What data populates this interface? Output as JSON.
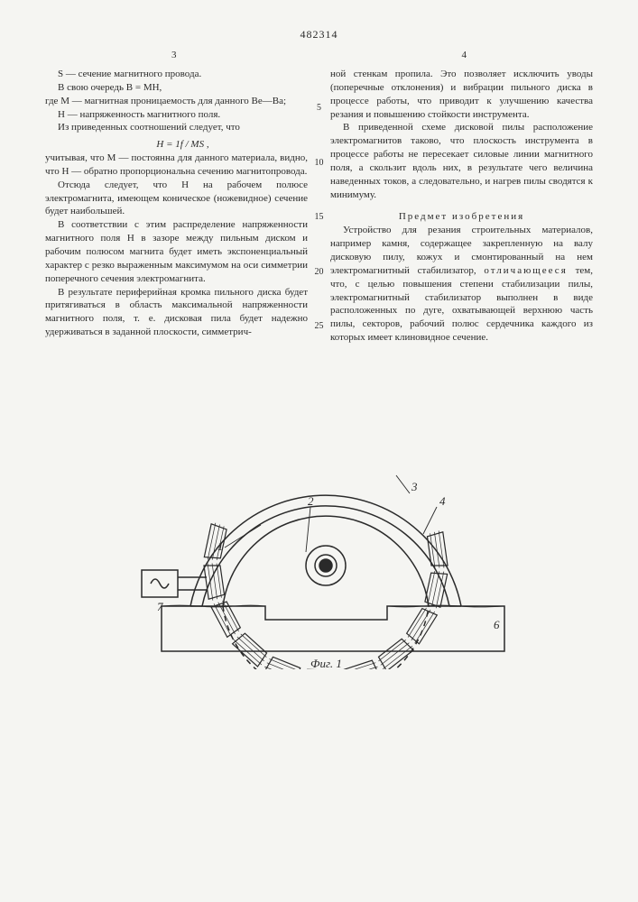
{
  "patent_number": "482314",
  "page_left": "3",
  "page_right": "4",
  "line_markers": [
    "5",
    "10",
    "15",
    "20",
    "25"
  ],
  "left_column": {
    "p1": "S — сечение магнитного провода.",
    "p2": "В свою очередь B = MH,",
    "p3": "где M — магнитная проницаемость для данного Be—Ba;",
    "p4": "H — напряженность магнитного поля.",
    "p5": "Из приведенных соотношений следует, что",
    "formula": "H = 1f / MS ,",
    "p6": "учитывая, что M — постоянна для данного материала, видно, что H — обратно пропорциональна сечению магнитопровода.",
    "p7": "Отсюда следует, что H на рабочем полюсе электромагнита, имеющем коническое (ножевидное) сечение будет наибольшей.",
    "p8": "В соответствии с этим распределение напряженности магнитного поля H в зазоре между пильным диском и рабочим полюсом магнита будет иметь экспоненциальный характер с резко выраженным максимумом на оси симметрии поперечного сечения электромагнита.",
    "p9": "В результате периферийная кромка пильного диска будет притягиваться в область максимальной напряженности магнитного поля, т. е. дисковая пила будет надежно удерживаться в заданной плоскости, симметрич-"
  },
  "right_column": {
    "p1": "ной стенкам пропила. Это позволяет исключить уводы (поперечные отклонения) и вибрации пильного диска в процессе работы, что приводит к улучшению качества резания и повышению стойкости инструмента.",
    "p2": "В приведенной схеме дисковой пилы расположение электромагнитов таково, что плоскость инструмента в процессе работы не пересекает силовые линии магнитного поля, а скользит вдоль них, в результате чего величина наведенных токов, а следовательно, и нагрев пилы сводятся к минимуму.",
    "section_title": "Предмет изобретения",
    "p3_start": "Устройство для резания строительных материалов, например камня, содержащее закрепленную на валу дисковую пилу, кожух и смонтированный на нем электромагнитный стабилизатор, ",
    "p3_spaced": "отличающееся",
    "p3_end": " тем, что, с целью повышения степени стабилизации пилы, электромагнитный стабилизатор выполнен в виде расположенных по дуге, охватывающей верхнюю часть пилы, секторов, рабочий полюс сердечника каждого из которых имеет клиновидное сечение."
  },
  "figure": {
    "caption": "Фиг. 1",
    "labels": [
      "1",
      "2",
      "3",
      "4",
      "6",
      "7"
    ],
    "colors": {
      "stroke": "#2a2a2a",
      "background": "#f5f5f2"
    }
  }
}
